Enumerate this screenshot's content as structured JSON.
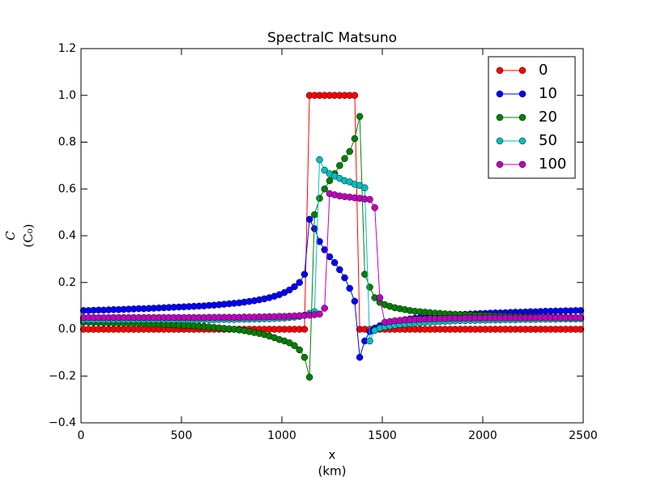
{
  "chart_data": {
    "type": "line",
    "title": "SpectralC Matsuno",
    "xlabel": [
      "x",
      "(km)"
    ],
    "ylabel": [
      "C",
      "(C₀)"
    ],
    "xlim": [
      0,
      2500
    ],
    "ylim": [
      -0.4,
      1.2
    ],
    "xticks": [
      0,
      500,
      1000,
      1500,
      2000,
      2500
    ],
    "yticks": [
      {
        "value": -0.4,
        "label": "−0.4"
      },
      {
        "value": -0.2,
        "label": "−0.2"
      },
      {
        "value": 0,
        "label": "0.0"
      },
      0.2,
      0.4,
      0.6,
      0.8,
      {
        "value": 1,
        "label": "1.0"
      },
      1.2
    ],
    "legend": "upper right",
    "x": [
      12.5,
      37.5,
      62.5,
      87.5,
      112.5,
      137.5,
      162.5,
      187.5,
      212.5,
      237.5,
      262.5,
      287.5,
      312.5,
      337.5,
      362.5,
      387.5,
      412.5,
      437.5,
      462.5,
      487.5,
      512.5,
      537.5,
      562.5,
      587.5,
      612.5,
      637.5,
      662.5,
      687.5,
      712.5,
      737.5,
      762.5,
      787.5,
      812.5,
      837.5,
      862.5,
      887.5,
      912.5,
      937.5,
      962.5,
      987.5,
      1012.5,
      1037.5,
      1062.5,
      1087.5,
      1112.5,
      1137.5,
      1162.5,
      1187.5,
      1212.5,
      1237.5,
      1262.5,
      1287.5,
      1312.5,
      1337.5,
      1362.5,
      1387.5,
      1412.5,
      1437.5,
      1462.5,
      1487.5,
      1512.5,
      1537.5,
      1562.5,
      1587.5,
      1612.5,
      1637.5,
      1662.5,
      1687.5,
      1712.5,
      1737.5,
      1762.5,
      1787.5,
      1812.5,
      1837.5,
      1862.5,
      1887.5,
      1912.5,
      1937.5,
      1962.5,
      1987.5,
      2012.5,
      2037.5,
      2062.5,
      2087.5,
      2112.5,
      2137.5,
      2162.5,
      2187.5,
      2212.5,
      2237.5,
      2262.5,
      2287.5,
      2312.5,
      2337.5,
      2362.5,
      2387.5,
      2412.5,
      2437.5,
      2462.5,
      2487.5
    ],
    "series": [
      {
        "name": "0",
        "color": "#ff0000",
        "values": [
          0,
          0,
          0,
          0,
          0,
          0,
          0,
          0,
          0,
          0,
          0,
          0,
          0,
          0,
          0,
          0,
          0,
          0,
          0,
          0,
          0,
          0,
          0,
          0,
          0,
          0,
          0,
          0,
          0,
          0,
          0,
          0,
          0,
          0,
          0,
          0,
          0,
          0,
          0,
          0,
          0,
          0,
          0,
          0,
          0,
          1,
          1,
          1,
          1,
          1,
          1,
          1,
          1,
          1,
          1,
          0,
          0,
          0,
          0,
          0,
          0,
          0,
          0,
          0,
          0,
          0,
          0,
          0,
          0,
          0,
          0,
          0,
          0,
          0,
          0,
          0,
          0,
          0,
          0,
          0,
          0,
          0,
          0,
          0,
          0,
          0,
          0,
          0,
          0,
          0,
          0,
          0,
          0,
          0,
          0,
          0,
          0,
          0,
          0,
          0
        ]
      },
      {
        "name": "10",
        "color": "#0000ff",
        "values": [
          0.08,
          0.08,
          0.081,
          0.082,
          0.082,
          0.083,
          0.084,
          0.084,
          0.085,
          0.086,
          0.087,
          0.088,
          0.088,
          0.089,
          0.09,
          0.091,
          0.092,
          0.093,
          0.094,
          0.095,
          0.096,
          0.097,
          0.098,
          0.099,
          0.1,
          0.102,
          0.103,
          0.105,
          0.107,
          0.109,
          0.111,
          0.113,
          0.116,
          0.119,
          0.122,
          0.126,
          0.13,
          0.135,
          0.141,
          0.148,
          0.157,
          0.168,
          0.182,
          0.2,
          0.235,
          0.47,
          0.43,
          0.375,
          0.34,
          0.31,
          0.285,
          0.255,
          0.22,
          0.175,
          0.12,
          -0.12,
          -0.05,
          -0.01,
          0.005,
          0.015,
          0.022,
          0.028,
          0.033,
          0.037,
          0.041,
          0.044,
          0.047,
          0.05,
          0.052,
          0.054,
          0.056,
          0.058,
          0.06,
          0.061,
          0.062,
          0.063,
          0.064,
          0.065,
          0.066,
          0.067,
          0.068,
          0.069,
          0.07,
          0.07,
          0.071,
          0.072,
          0.073,
          0.073,
          0.074,
          0.075,
          0.075,
          0.076,
          0.077,
          0.077,
          0.078,
          0.078,
          0.079,
          0.079,
          0.08,
          0.08
        ]
      },
      {
        "name": "20",
        "color": "#008000",
        "values": [
          0.03,
          0.03,
          0.029,
          0.029,
          0.028,
          0.028,
          0.027,
          0.027,
          0.026,
          0.026,
          0.025,
          0.025,
          0.024,
          0.023,
          0.023,
          0.022,
          0.021,
          0.02,
          0.019,
          0.018,
          0.017,
          0.016,
          0.015,
          0.013,
          0.012,
          0.01,
          0.008,
          0.006,
          0.004,
          0.002,
          0,
          -0.003,
          -0.006,
          -0.01,
          -0.014,
          -0.018,
          -0.023,
          -0.029,
          -0.036,
          -0.044,
          -0.05,
          -0.058,
          -0.07,
          -0.088,
          -0.12,
          -0.205,
          0.49,
          0.56,
          0.6,
          0.635,
          0.665,
          0.7,
          0.73,
          0.76,
          0.815,
          0.91,
          0.235,
          0.18,
          0.135,
          0.115,
          0.105,
          0.098,
          0.092,
          0.088,
          0.084,
          0.08,
          0.077,
          0.075,
          0.073,
          0.071,
          0.069,
          0.068,
          0.066,
          0.065,
          0.064,
          0.063,
          0.062,
          0.061,
          0.06,
          0.06,
          0.059,
          0.058,
          0.057,
          0.057,
          0.056,
          0.056,
          0.055,
          0.055,
          0.054,
          0.054,
          0.053,
          0.053,
          0.052,
          0.052,
          0.052,
          0.051,
          0.051,
          0.05,
          0.05,
          0.05
        ]
      },
      {
        "name": "50",
        "color": "#00bfbf",
        "values": [
          0.04,
          0.04,
          0.04,
          0.04,
          0.04,
          0.04,
          0.04,
          0.04,
          0.04,
          0.04,
          0.04,
          0.04,
          0.04,
          0.04,
          0.04,
          0.04,
          0.04,
          0.04,
          0.04,
          0.04,
          0.04,
          0.04,
          0.04,
          0.041,
          0.041,
          0.041,
          0.041,
          0.042,
          0.042,
          0.042,
          0.042,
          0.043,
          0.043,
          0.043,
          0.044,
          0.044,
          0.045,
          0.045,
          0.046,
          0.047,
          0.048,
          0.05,
          0.052,
          0.055,
          0.06,
          0.068,
          0.075,
          0.725,
          0.68,
          0.665,
          0.655,
          0.645,
          0.635,
          0.63,
          0.62,
          0.615,
          0.605,
          -0.05,
          -0.005,
          0.005,
          0.01,
          0.014,
          0.017,
          0.02,
          0.022,
          0.024,
          0.026,
          0.028,
          0.03,
          0.031,
          0.032,
          0.033,
          0.034,
          0.035,
          0.036,
          0.037,
          0.037,
          0.038,
          0.038,
          0.039,
          0.039,
          0.04,
          0.04,
          0.04,
          0.041,
          0.041,
          0.041,
          0.042,
          0.042,
          0.042,
          0.042,
          0.043,
          0.043,
          0.043,
          0.043,
          0.044,
          0.044,
          0.044,
          0.044,
          0.045
        ]
      },
      {
        "name": "100",
        "color": "#bf00bf",
        "values": [
          0.05,
          0.05,
          0.05,
          0.05,
          0.05,
          0.05,
          0.05,
          0.05,
          0.05,
          0.05,
          0.05,
          0.05,
          0.05,
          0.05,
          0.05,
          0.05,
          0.05,
          0.05,
          0.05,
          0.05,
          0.05,
          0.05,
          0.05,
          0.05,
          0.05,
          0.051,
          0.051,
          0.051,
          0.051,
          0.051,
          0.051,
          0.051,
          0.052,
          0.052,
          0.052,
          0.053,
          0.053,
          0.054,
          0.054,
          0.055,
          0.055,
          0.056,
          0.057,
          0.058,
          0.059,
          0.06,
          0.062,
          0.065,
          0.09,
          0.58,
          0.575,
          0.57,
          0.567,
          0.565,
          0.562,
          0.56,
          0.557,
          0.555,
          0.52,
          0.135,
          0.03,
          0.033,
          0.036,
          0.038,
          0.04,
          0.041,
          0.042,
          0.043,
          0.044,
          0.045,
          0.045,
          0.046,
          0.046,
          0.047,
          0.047,
          0.047,
          0.048,
          0.048,
          0.048,
          0.048,
          0.049,
          0.049,
          0.049,
          0.049,
          0.049,
          0.049,
          0.049,
          0.049,
          0.049,
          0.049,
          0.05,
          0.05,
          0.05,
          0.05,
          0.05,
          0.05,
          0.05,
          0.05,
          0.05,
          0.05
        ]
      }
    ]
  }
}
